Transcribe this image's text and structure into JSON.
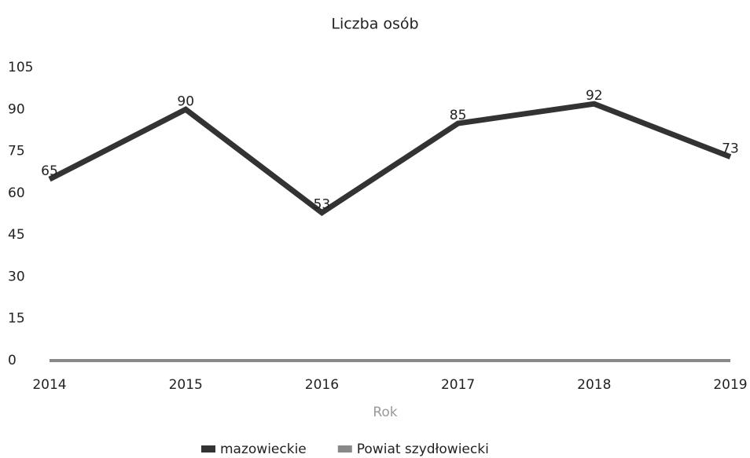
{
  "chart_data": {
    "type": "line",
    "title": "Liczba osób",
    "x_label": "Rok",
    "categories": [
      "2014",
      "2015",
      "2016",
      "2017",
      "2018",
      "2019"
    ],
    "series": [
      {
        "name": "mazowieckie",
        "color": "#333333",
        "values": [
          65,
          90,
          53,
          85,
          92,
          73
        ]
      },
      {
        "name": "Powiat szydłowiecki",
        "color": "#888888",
        "values": [
          0,
          0,
          0,
          0,
          0,
          0
        ]
      }
    ],
    "data_labels_series": 0,
    "ylim": [
      0,
      105
    ],
    "yticks": [
      0,
      15,
      30,
      45,
      60,
      75,
      90,
      105
    ],
    "grid": false
  }
}
